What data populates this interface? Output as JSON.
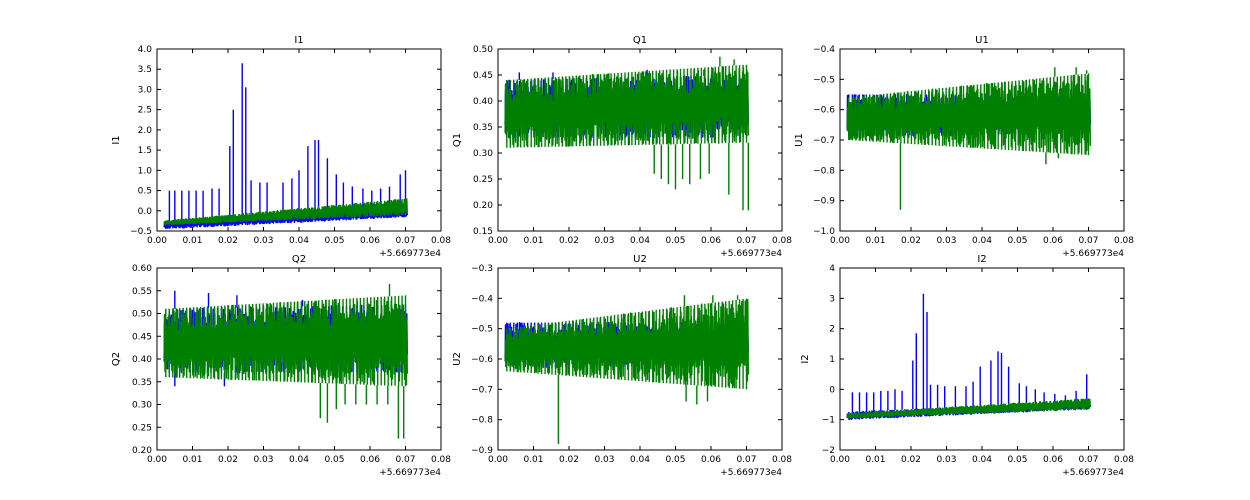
{
  "colors": {
    "series_a": "#0000ff",
    "series_b": "#008000"
  },
  "x_offset_label": "+5.669773e4",
  "chart_data": [
    {
      "id": "I1",
      "type": "line",
      "title": "I1",
      "ylabel": "I1",
      "xlim": [
        0.0,
        0.08
      ],
      "ylim": [
        -0.5,
        4.0
      ],
      "xticks": [
        "0.00",
        "0.01",
        "0.02",
        "0.03",
        "0.04",
        "0.05",
        "0.06",
        "0.07",
        "0.08"
      ],
      "yticks": [
        "−0.5",
        "0.0",
        "0.5",
        "1.0",
        "1.5",
        "2.0",
        "2.5",
        "3.0",
        "3.5",
        "4.0"
      ],
      "ytick_values": [
        -0.5,
        0.0,
        0.5,
        1.0,
        1.5,
        2.0,
        2.5,
        3.0,
        3.5,
        4.0
      ],
      "x_range": [
        0.002,
        0.0705
      ],
      "series": [
        {
          "name": "blue",
          "band_start": [
            -0.45,
            -0.25
          ],
          "band_end": [
            -0.15,
            0.05
          ],
          "spikes": [
            [
              0.0035,
              0.5
            ],
            [
              0.005,
              0.5
            ],
            [
              0.007,
              0.5
            ],
            [
              0.009,
              0.5
            ],
            [
              0.011,
              0.5
            ],
            [
              0.013,
              0.5
            ],
            [
              0.0155,
              0.55
            ],
            [
              0.0175,
              0.55
            ],
            [
              0.0205,
              1.6
            ],
            [
              0.0215,
              2.5
            ],
            [
              0.024,
              3.65
            ],
            [
              0.025,
              3.05
            ],
            [
              0.0265,
              0.75
            ],
            [
              0.029,
              0.7
            ],
            [
              0.031,
              0.7
            ],
            [
              0.0355,
              0.7
            ],
            [
              0.038,
              0.8
            ],
            [
              0.04,
              1.0
            ],
            [
              0.0425,
              1.6
            ],
            [
              0.0445,
              1.75
            ],
            [
              0.0455,
              1.75
            ],
            [
              0.048,
              1.3
            ],
            [
              0.0505,
              0.9
            ],
            [
              0.0525,
              0.7
            ],
            [
              0.055,
              0.6
            ],
            [
              0.058,
              0.55
            ],
            [
              0.0605,
              0.5
            ],
            [
              0.063,
              0.55
            ],
            [
              0.0655,
              0.6
            ],
            [
              0.0685,
              0.9
            ],
            [
              0.07,
              1.0
            ]
          ]
        },
        {
          "name": "green",
          "band_start": [
            -0.35,
            -0.25
          ],
          "band_end": [
            -0.1,
            0.3
          ],
          "spikes": []
        }
      ]
    },
    {
      "id": "Q1",
      "type": "line",
      "title": "Q1",
      "ylabel": "Q1",
      "xlim": [
        0.0,
        0.08
      ],
      "ylim": [
        0.15,
        0.5
      ],
      "xticks": [
        "0.00",
        "0.01",
        "0.02",
        "0.03",
        "0.04",
        "0.05",
        "0.06",
        "0.07",
        "0.08"
      ],
      "yticks": [
        "0.15",
        "0.20",
        "0.25",
        "0.30",
        "0.35",
        "0.40",
        "0.45",
        "0.50"
      ],
      "ytick_values": [
        0.15,
        0.2,
        0.25,
        0.3,
        0.35,
        0.4,
        0.45,
        0.5
      ],
      "x_range": [
        0.002,
        0.0705
      ],
      "series": [
        {
          "name": "blue",
          "band_start": [
            0.33,
            0.44
          ],
          "band_end": [
            0.33,
            0.45
          ],
          "spikes": [
            [
              0.006,
              0.455
            ],
            [
              0.0155,
              0.455
            ],
            [
              0.042,
              0.46
            ],
            [
              0.058,
              0.46
            ]
          ]
        },
        {
          "name": "green",
          "band_start": [
            0.31,
            0.44
          ],
          "band_end": [
            0.32,
            0.47
          ],
          "spikes": [
            [
              0.0625,
              0.485
            ],
            [
              0.0665,
              0.48
            ],
            [
              0.044,
              0.26
            ],
            [
              0.046,
              0.25
            ],
            [
              0.048,
              0.24
            ],
            [
              0.05,
              0.23
            ],
            [
              0.052,
              0.25
            ],
            [
              0.054,
              0.24
            ],
            [
              0.057,
              0.25
            ],
            [
              0.0595,
              0.26
            ],
            [
              0.065,
              0.22
            ],
            [
              0.069,
              0.19
            ],
            [
              0.0705,
              0.19
            ]
          ]
        }
      ]
    },
    {
      "id": "U1",
      "type": "line",
      "title": "U1",
      "ylabel": "U1",
      "xlim": [
        0.0,
        0.08
      ],
      "ylim": [
        -1.0,
        -0.4
      ],
      "xticks": [
        "0.00",
        "0.01",
        "0.02",
        "0.03",
        "0.04",
        "0.05",
        "0.06",
        "0.07",
        "0.08"
      ],
      "yticks": [
        "−1.0",
        "−0.9",
        "−0.8",
        "−0.7",
        "−0.6",
        "−0.5",
        "−0.4"
      ],
      "ytick_values": [
        -1.0,
        -0.9,
        -0.8,
        -0.7,
        -0.6,
        -0.5,
        -0.4
      ],
      "x_range": [
        0.002,
        0.0705
      ],
      "series": [
        {
          "name": "blue",
          "band_start": [
            -0.69,
            -0.55
          ],
          "band_end": [
            -0.68,
            -0.55
          ],
          "spikes": []
        },
        {
          "name": "green",
          "band_start": [
            -0.7,
            -0.56
          ],
          "band_end": [
            -0.75,
            -0.48
          ],
          "spikes": [
            [
              0.017,
              -0.93
            ],
            [
              0.0605,
              -0.46
            ],
            [
              0.0665,
              -0.46
            ],
            [
              0.0695,
              -0.47
            ],
            [
              0.058,
              -0.78
            ],
            [
              0.0615,
              -0.76
            ]
          ]
        }
      ]
    },
    {
      "id": "Q2",
      "type": "line",
      "title": "Q2",
      "ylabel": "Q2",
      "xlim": [
        0.0,
        0.08
      ],
      "ylim": [
        0.2,
        0.6
      ],
      "xticks": [
        "0.00",
        "0.01",
        "0.02",
        "0.03",
        "0.04",
        "0.05",
        "0.06",
        "0.07",
        "0.08"
      ],
      "yticks": [
        "0.20",
        "0.25",
        "0.30",
        "0.35",
        "0.40",
        "0.45",
        "0.50",
        "0.55",
        "0.60"
      ],
      "ytick_values": [
        0.2,
        0.25,
        0.3,
        0.35,
        0.4,
        0.45,
        0.5,
        0.55,
        0.6
      ],
      "x_range": [
        0.002,
        0.0705
      ],
      "series": [
        {
          "name": "blue",
          "band_start": [
            0.37,
            0.51
          ],
          "band_end": [
            0.37,
            0.52
          ],
          "spikes": [
            [
              0.005,
              0.55
            ],
            [
              0.0145,
              0.545
            ],
            [
              0.0225,
              0.54
            ],
            [
              0.041,
              0.53
            ],
            [
              0.005,
              0.34
            ],
            [
              0.019,
              0.34
            ]
          ]
        },
        {
          "name": "green",
          "band_start": [
            0.36,
            0.51
          ],
          "band_end": [
            0.34,
            0.54
          ],
          "spikes": [
            [
              0.0655,
              0.565
            ],
            [
              0.046,
              0.27
            ],
            [
              0.048,
              0.26
            ],
            [
              0.0505,
              0.29
            ],
            [
              0.053,
              0.3
            ],
            [
              0.056,
              0.3
            ],
            [
              0.059,
              0.3
            ],
            [
              0.062,
              0.3
            ],
            [
              0.065,
              0.3
            ],
            [
              0.068,
              0.225
            ],
            [
              0.0695,
              0.225
            ]
          ]
        }
      ]
    },
    {
      "id": "U2",
      "type": "line",
      "title": "U2",
      "ylabel": "U2",
      "xlim": [
        0.0,
        0.08
      ],
      "ylim": [
        -0.9,
        -0.3
      ],
      "xticks": [
        "0.00",
        "0.01",
        "0.02",
        "0.03",
        "0.04",
        "0.05",
        "0.06",
        "0.07",
        "0.08"
      ],
      "yticks": [
        "−0.9",
        "−0.8",
        "−0.7",
        "−0.6",
        "−0.5",
        "−0.4",
        "−0.3"
      ],
      "ytick_values": [
        -0.9,
        -0.8,
        -0.7,
        -0.6,
        -0.5,
        -0.4,
        -0.3
      ],
      "x_range": [
        0.002,
        0.0705
      ],
      "series": [
        {
          "name": "blue",
          "band_start": [
            -0.63,
            -0.48
          ],
          "band_end": [
            -0.62,
            -0.48
          ],
          "spikes": []
        },
        {
          "name": "green",
          "band_start": [
            -0.64,
            -0.5
          ],
          "band_end": [
            -0.7,
            -0.4
          ],
          "spikes": [
            [
              0.017,
              -0.88
            ],
            [
              0.053,
              -0.74
            ],
            [
              0.056,
              -0.75
            ],
            [
              0.059,
              -0.74
            ],
            [
              0.0525,
              -0.39
            ],
            [
              0.0605,
              -0.39
            ],
            [
              0.0675,
              -0.39
            ]
          ]
        }
      ]
    },
    {
      "id": "I2",
      "type": "line",
      "title": "I2",
      "ylabel": "I2",
      "xlim": [
        0.0,
        0.08
      ],
      "ylim": [
        -2.0,
        4.0
      ],
      "xticks": [
        "0.00",
        "0.01",
        "0.02",
        "0.03",
        "0.04",
        "0.05",
        "0.06",
        "0.07",
        "0.08"
      ],
      "yticks": [
        "−2",
        "−1",
        "0",
        "1",
        "2",
        "3",
        "4"
      ],
      "ytick_values": [
        -2,
        -1,
        0,
        1,
        2,
        3,
        4
      ],
      "x_range": [
        0.002,
        0.0705
      ],
      "series": [
        {
          "name": "blue",
          "band_start": [
            -1.0,
            -0.75
          ],
          "band_end": [
            -0.65,
            -0.4
          ],
          "spikes": [
            [
              0.0035,
              -0.1
            ],
            [
              0.0055,
              -0.1
            ],
            [
              0.0075,
              -0.1
            ],
            [
              0.0095,
              -0.1
            ],
            [
              0.0115,
              -0.05
            ],
            [
              0.0135,
              -0.05
            ],
            [
              0.0155,
              0.0
            ],
            [
              0.0175,
              -0.05
            ],
            [
              0.0205,
              0.95
            ],
            [
              0.0215,
              1.85
            ],
            [
              0.0235,
              3.15
            ],
            [
              0.0245,
              2.55
            ],
            [
              0.0255,
              0.15
            ],
            [
              0.0275,
              0.15
            ],
            [
              0.0295,
              0.1
            ],
            [
              0.0325,
              0.1
            ],
            [
              0.0355,
              0.1
            ],
            [
              0.0375,
              0.25
            ],
            [
              0.0395,
              0.75
            ],
            [
              0.0425,
              0.95
            ],
            [
              0.0445,
              1.25
            ],
            [
              0.0455,
              1.2
            ],
            [
              0.0475,
              0.75
            ],
            [
              0.0505,
              0.2
            ],
            [
              0.0525,
              0.1
            ],
            [
              0.055,
              0.0
            ],
            [
              0.0575,
              -0.1
            ],
            [
              0.0605,
              -0.15
            ],
            [
              0.0635,
              -0.2
            ],
            [
              0.0665,
              -0.05
            ],
            [
              0.0695,
              0.5
            ]
          ]
        },
        {
          "name": "green",
          "band_start": [
            -0.95,
            -0.8
          ],
          "band_end": [
            -0.65,
            -0.3
          ],
          "spikes": []
        }
      ]
    }
  ]
}
